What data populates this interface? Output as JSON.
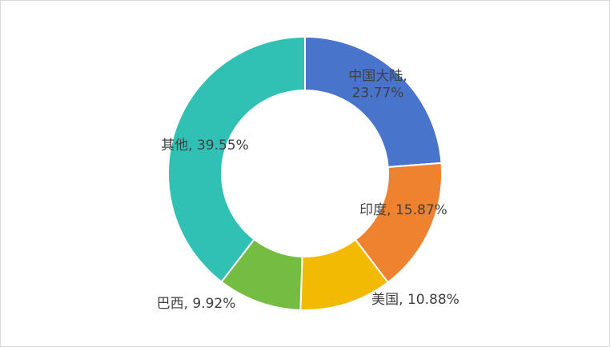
{
  "chart_data": {
    "type": "pie",
    "variant": "donut",
    "title": "",
    "legend": "none",
    "slices": [
      {
        "name": "中国大陆",
        "value": 23.77,
        "label_lines": [
          "中国大陆,",
          "23.77%"
        ],
        "color": "#4874CB"
      },
      {
        "name": "印度",
        "value": 15.87,
        "label_lines": [
          "印度, 15.87%"
        ],
        "color": "#EE822F"
      },
      {
        "name": "美国",
        "value": 10.88,
        "label_lines": [
          "美国, 10.88%"
        ],
        "color": "#F2BA02"
      },
      {
        "name": "巴西",
        "value": 9.92,
        "label_lines": [
          "巴西, 9.92%"
        ],
        "color": "#75BD42"
      },
      {
        "name": "其他",
        "value": 39.55,
        "label_lines": [
          "其他, 39.55%"
        ],
        "color": "#30C0B4"
      }
    ]
  }
}
